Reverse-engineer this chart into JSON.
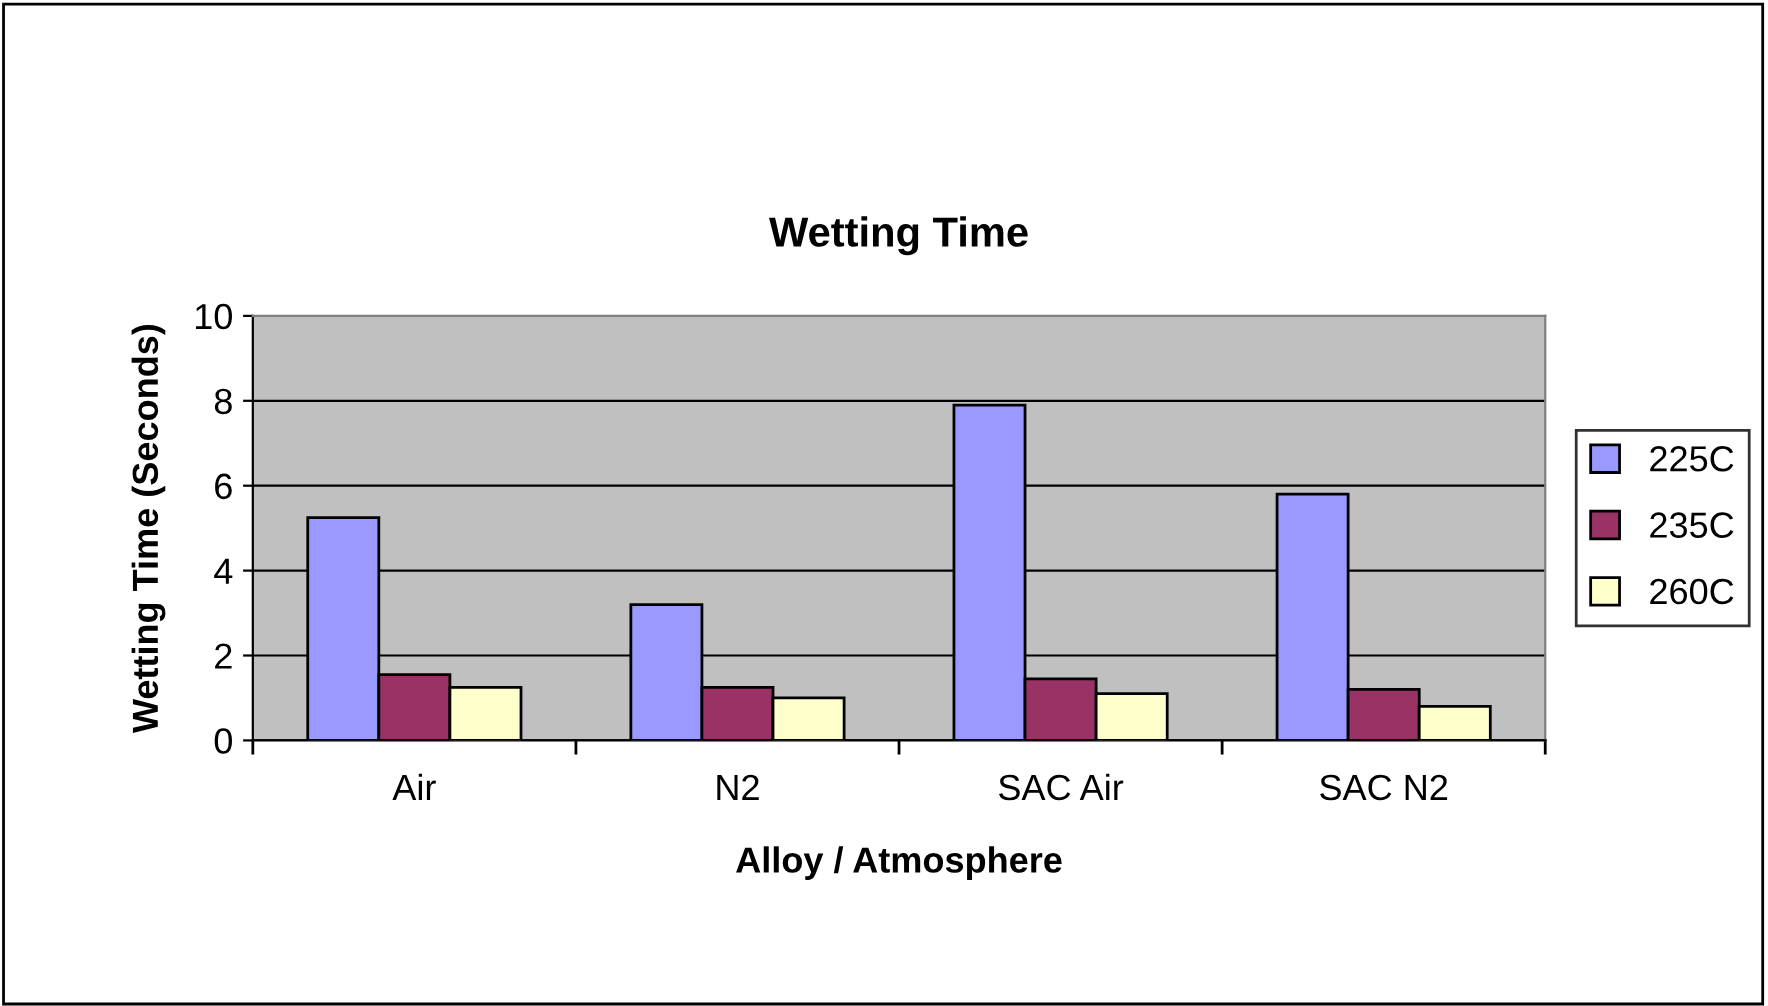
{
  "chart_data": {
    "type": "bar",
    "title": "Wetting Time",
    "xlabel": "Alloy / Atmosphere",
    "ylabel": "Wetting Time (Seconds)",
    "categories": [
      "Air",
      "N2",
      "SAC Air",
      "SAC N2"
    ],
    "series": [
      {
        "name": "225C",
        "color": "#9999ff",
        "values": [
          5.25,
          3.2,
          7.9,
          5.8
        ]
      },
      {
        "name": "235C",
        "color": "#993366",
        "values": [
          1.55,
          1.25,
          1.45,
          1.2
        ]
      },
      {
        "name": "260C",
        "color": "#ffffcc",
        "values": [
          1.25,
          1.0,
          1.1,
          0.8
        ]
      }
    ],
    "ylim": [
      0,
      10
    ],
    "yticks": [
      0,
      2,
      4,
      6,
      8,
      10
    ],
    "grid": "y",
    "legend": "right"
  }
}
